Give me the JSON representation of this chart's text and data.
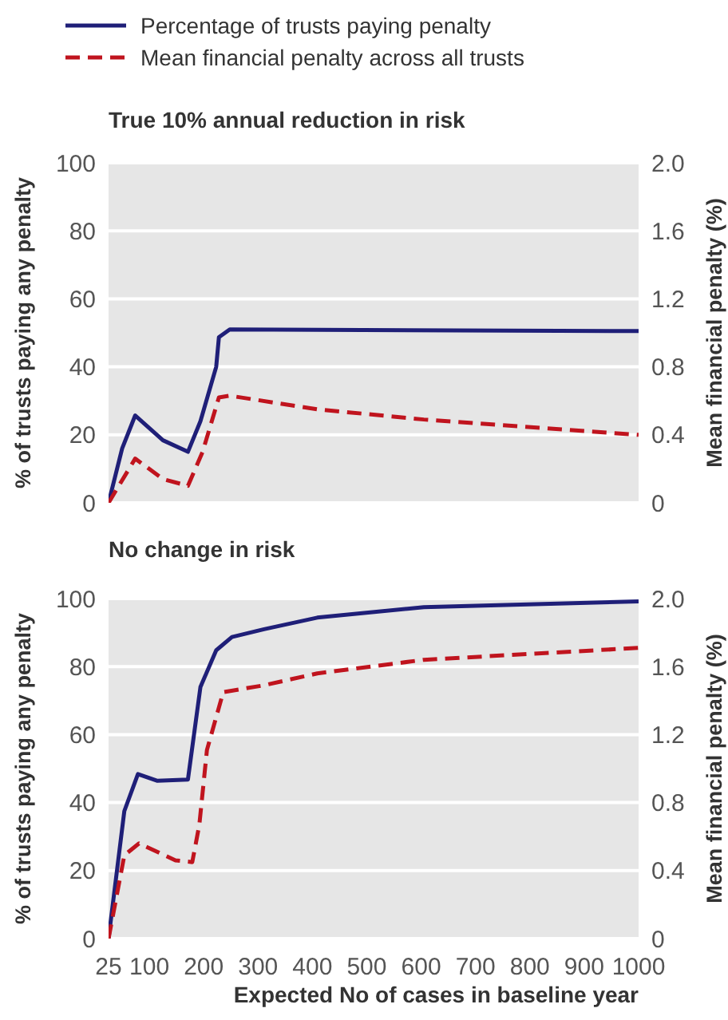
{
  "chart_data": [
    {
      "type": "line",
      "title": "True 10% annual reduction in risk",
      "ylabel": "% of trusts paying any penalty",
      "y2label": "Mean financial penalty (%)",
      "xlim": [
        25,
        1000
      ],
      "xticks": [
        25,
        100,
        200,
        300,
        400,
        500,
        600,
        700,
        800,
        900,
        1000
      ],
      "ylim": [
        0,
        100
      ],
      "yticks": [
        0,
        20,
        40,
        60,
        80,
        100
      ],
      "y2lim": [
        0,
        2
      ],
      "y2ticks": [
        0,
        0.4,
        0.8,
        1.2,
        1.6,
        {
          "value": 2,
          "label": "2.0"
        }
      ],
      "grid": "y",
      "legend": "top",
      "tick_labels": "y",
      "marker": "none",
      "series": [
        {
          "name": "Percentage of trusts paying penalty",
          "color": "#1f1f78",
          "line_style": "solid",
          "x": [
            25,
            50,
            74,
            125,
            171,
            194,
            223,
            228,
            248,
            1000
          ],
          "values": [
            0,
            16,
            25.7,
            18.4,
            15,
            24,
            40,
            48.7,
            51,
            50.5
          ]
        },
        {
          "name": "Mean financial penalty across all trusts",
          "color": "#c0141e",
          "line_style": "dashed",
          "axis": "y2",
          "x": [
            25,
            74,
            125,
            171,
            198,
            228,
            248,
            409,
            605,
            1000
          ],
          "values": [
            0,
            0.26,
            0.14,
            0.1,
            0.3,
            0.62,
            0.63,
            0.55,
            0.49,
            0.4
          ]
        }
      ]
    },
    {
      "type": "line",
      "title": "No change in risk",
      "xlabel": "Expected No of cases in baseline year",
      "ylabel": "% of trusts paying any penalty",
      "y2label": "Mean financial penalty (%)",
      "xlim": [
        25,
        1000
      ],
      "xticks": [
        25,
        100,
        200,
        300,
        400,
        500,
        600,
        700,
        800,
        900,
        1000
      ],
      "ylim": [
        0,
        100
      ],
      "yticks": [
        0,
        20,
        40,
        60,
        80,
        100
      ],
      "y2lim": [
        0,
        2
      ],
      "y2ticks": [
        0,
        0.4,
        0.8,
        1.2,
        1.6,
        {
          "value": 2,
          "label": "2.0"
        }
      ],
      "grid": "y",
      "marker": "none",
      "series": [
        {
          "color": "#1f1f78",
          "line_style": "solid",
          "x": [
            25,
            54,
            79,
            115,
            171,
            194,
            223,
            252,
            311,
            409,
            605,
            1000
          ],
          "values": [
            0,
            37.5,
            48.4,
            46.4,
            46.8,
            74,
            84.8,
            88.7,
            91,
            94.4,
            97.5,
            99.2
          ]
        },
        {
          "color": "#c0141e",
          "line_style": "dashed",
          "axis": "y2",
          "x": [
            25,
            54,
            81,
            148,
            179,
            192,
            206,
            236,
            311,
            409,
            605,
            1000
          ],
          "values": [
            0,
            0.49,
            0.56,
            0.46,
            0.45,
            0.67,
            1.11,
            1.45,
            1.49,
            1.56,
            1.64,
            1.71
          ]
        }
      ]
    }
  ]
}
